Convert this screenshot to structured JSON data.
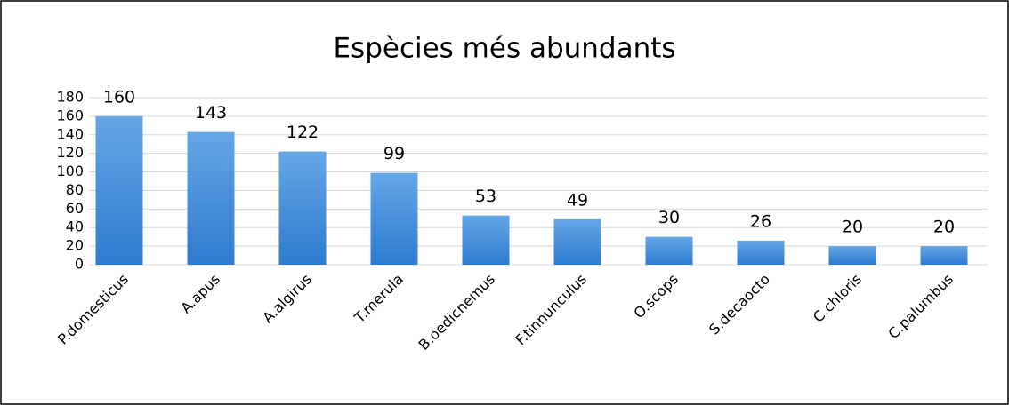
{
  "chart_data": {
    "type": "bar",
    "title": "Espècies més abundants",
    "categories": [
      "P.domesticus",
      "A.apus",
      "A.algirus",
      "T.merula",
      "B.oedicnemus",
      "F.tinnunculus",
      "O.scops",
      "S.decaocto",
      "C.chloris",
      "C.palumbus"
    ],
    "values": [
      160,
      143,
      122,
      99,
      53,
      49,
      30,
      26,
      20,
      20
    ],
    "color": "#3d85d3",
    "ylim": [
      0,
      180
    ],
    "yticks": [
      0,
      20,
      40,
      60,
      80,
      100,
      120,
      140,
      160,
      180
    ],
    "grid": true
  }
}
